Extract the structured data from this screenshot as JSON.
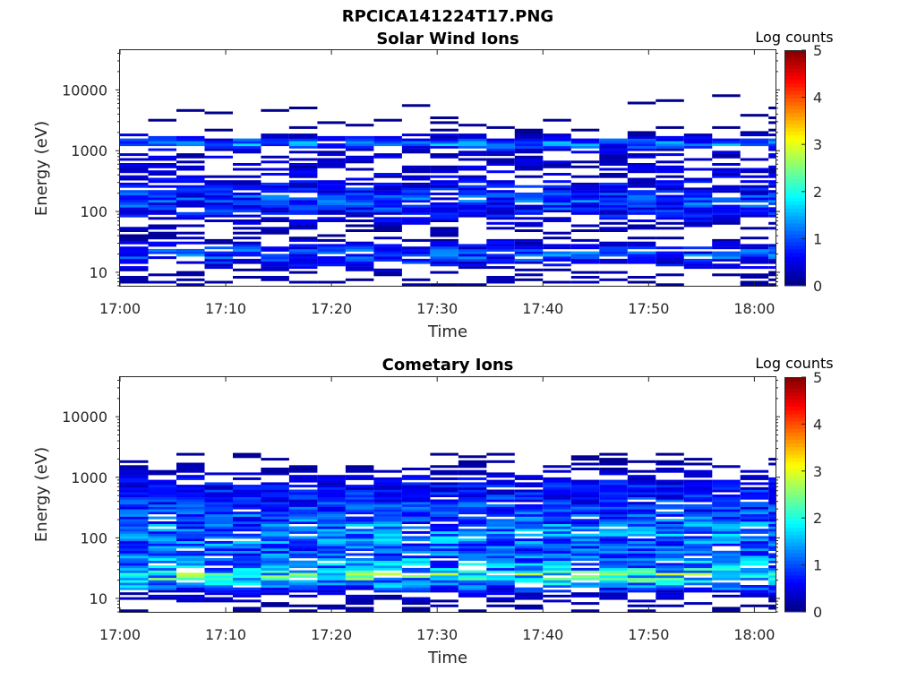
{
  "figure": {
    "title": "RPCICA141224T17.PNG"
  },
  "colormap": {
    "name": "jet",
    "range": [
      0,
      5
    ]
  },
  "chart_data": [
    {
      "type": "heatmap",
      "title": "Solar Wind Ions",
      "xlabel": "Time",
      "ylabel": "Energy (eV)",
      "yscale": "log",
      "ylim": [
        6,
        45000
      ],
      "xlim": [
        "17:00",
        "18:02"
      ],
      "x_ticks": [
        "17:00",
        "17:10",
        "17:20",
        "17:30",
        "17:40",
        "17:50",
        "18:00"
      ],
      "y_ticks": [
        "10",
        "100",
        "1000",
        "10000"
      ],
      "colorbar": {
        "label": "Log counts",
        "ticks": [
          "0",
          "1",
          "2",
          "3",
          "4",
          "5"
        ],
        "range": [
          0,
          5
        ]
      },
      "value_unit": "log10 counts",
      "time_step_minutes": 2.667,
      "energy_range_ev": [
        6,
        45000
      ],
      "energy_bins": 96,
      "band_profile_log_counts": {
        "energy_ev": [
          10,
          20,
          40,
          100,
          150,
          300,
          600,
          1000,
          1300,
          2000,
          5000,
          20000
        ],
        "level": [
          0.3,
          1.3,
          0.2,
          0.9,
          1.2,
          0.7,
          0.5,
          0.6,
          1.5,
          0.2,
          0.15,
          0.1
        ]
      }
    },
    {
      "type": "heatmap",
      "title": "Cometary Ions",
      "xlabel": "Time",
      "ylabel": "Energy (eV)",
      "yscale": "log",
      "ylim": [
        6,
        45000
      ],
      "xlim": [
        "17:00",
        "18:02"
      ],
      "x_ticks": [
        "17:00",
        "17:10",
        "17:20",
        "17:30",
        "17:40",
        "17:50",
        "18:00"
      ],
      "y_ticks": [
        "10",
        "100",
        "1000",
        "10000"
      ],
      "colorbar": {
        "label": "Log counts",
        "ticks": [
          "0",
          "1",
          "2",
          "3",
          "4",
          "5"
        ],
        "range": [
          0,
          5
        ]
      },
      "value_unit": "log10 counts",
      "time_step_minutes": 2.667,
      "energy_range_ev": [
        6,
        45000
      ],
      "energy_bins": 96,
      "band_profile_log_counts": {
        "energy_ev": [
          8,
          12,
          20,
          25,
          30,
          60,
          100,
          150,
          300,
          800,
          1500,
          3000
        ],
        "level": [
          0.3,
          0.6,
          2.1,
          2.3,
          1.8,
          1.2,
          1.5,
          1.4,
          1.1,
          0.8,
          0.3,
          0.1
        ]
      }
    }
  ]
}
